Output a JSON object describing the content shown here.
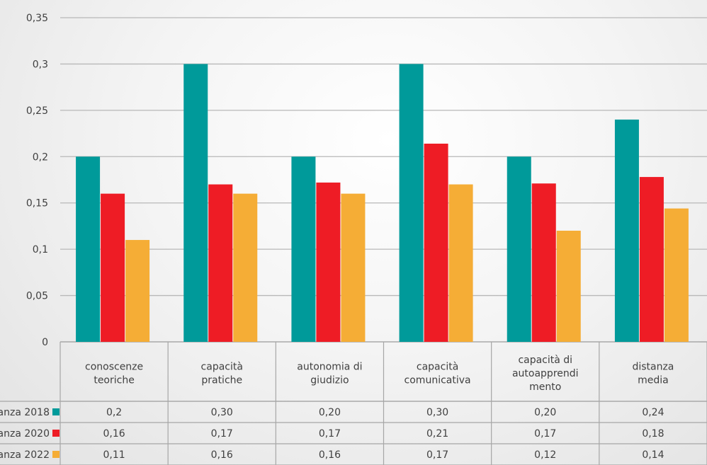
{
  "chart_data": {
    "type": "bar",
    "categories": [
      [
        "conoscenze",
        "teoriche"
      ],
      [
        "capacità",
        "pratiche"
      ],
      [
        "autonomia di",
        "giudizio"
      ],
      [
        "capacità",
        "comunicativa"
      ],
      [
        "capacità di",
        "autoapprendi",
        "mento"
      ],
      [
        "distanza",
        "media"
      ]
    ],
    "series": [
      {
        "name": "anza 2018",
        "color": "#009A9A",
        "values": [
          0.2,
          0.3,
          0.2,
          0.3,
          0.2,
          0.24
        ],
        "labels": [
          "0,2",
          "0,30",
          "0,20",
          "0,30",
          "0,20",
          "0,24"
        ]
      },
      {
        "name": "anza 2020",
        "color": "#EE1C25",
        "values": [
          0.16,
          0.17,
          0.172,
          0.214,
          0.171,
          0.178
        ],
        "labels": [
          "0,16",
          "0,17",
          "0,17",
          "0,21",
          "0,17",
          "0,18"
        ]
      },
      {
        "name": "anza 2022",
        "color": "#F5AD36",
        "values": [
          0.11,
          0.16,
          0.16,
          0.17,
          0.12,
          0.144
        ],
        "labels": [
          "0,11",
          "0,16",
          "0,16",
          "0,17",
          "0,12",
          "0,14"
        ]
      }
    ],
    "yticks": [
      "0",
      "0,05",
      "0,1",
      "0,15",
      "0,2",
      "0,25",
      "0,3",
      "0,35"
    ],
    "ylim": [
      0,
      0.35
    ],
    "grid": true,
    "legend": "data-table",
    "title": "",
    "xlabel": "",
    "ylabel": ""
  }
}
